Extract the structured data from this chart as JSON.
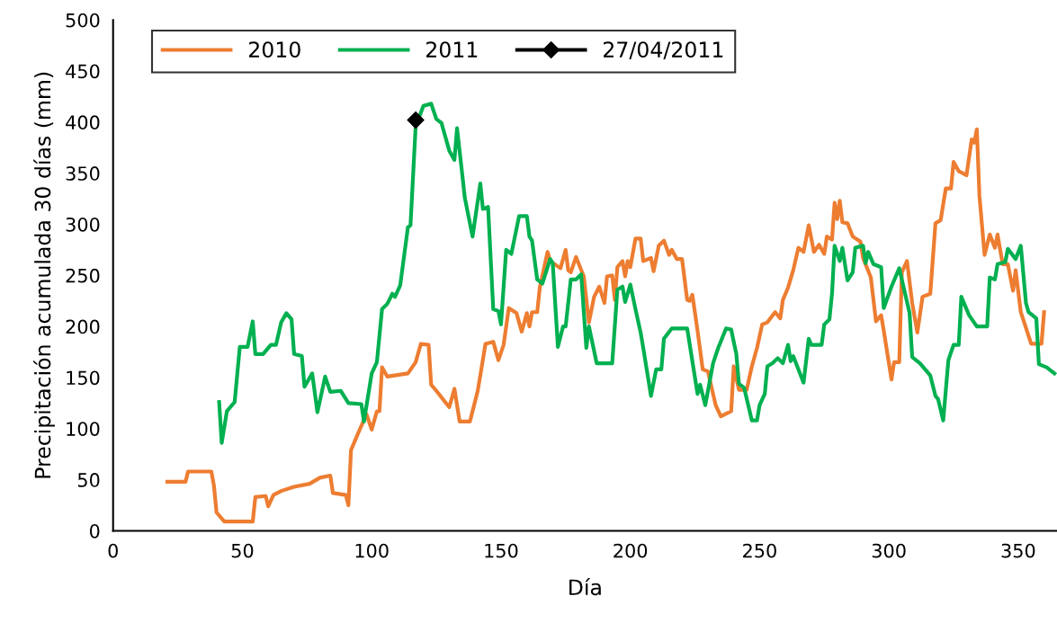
{
  "chart_data": {
    "type": "line",
    "xlabel": "Día",
    "ylabel": "Precipitación acumulada 30 días (mm)",
    "xlim": [
      0,
      365
    ],
    "xticks": [
      0,
      50,
      100,
      150,
      200,
      250,
      300,
      350
    ],
    "ylim": [
      0,
      500
    ],
    "yticks": [
      0,
      50,
      100,
      150,
      200,
      250,
      300,
      350,
      400,
      450,
      500
    ],
    "grid": false,
    "legend": "top left",
    "series": [
      {
        "name": "2010",
        "color": "#ed7d31",
        "marker": "none",
        "x": [
          21,
          28,
          29,
          38,
          39,
          40,
          43,
          54,
          55,
          59,
          60,
          62,
          65,
          70,
          76,
          80,
          84,
          85,
          90,
          91,
          92,
          95,
          98,
          100,
          102,
          103,
          104,
          106,
          114,
          117,
          119,
          122,
          123,
          125,
          130,
          132,
          134,
          138,
          141,
          142,
          144,
          147,
          149,
          151,
          153,
          156,
          158,
          160,
          161,
          162,
          164,
          165,
          168,
          169,
          173,
          175,
          176,
          177,
          179,
          182,
          184,
          186,
          188,
          190,
          191,
          193,
          194,
          195,
          197,
          198,
          199,
          200,
          202,
          204,
          205,
          208,
          209,
          211,
          213,
          215,
          216,
          218,
          220,
          222,
          223,
          224,
          226,
          228,
          230,
          233,
          235,
          239,
          240,
          242,
          245,
          247,
          249,
          251,
          253,
          256,
          258,
          259,
          261,
          263,
          265,
          267,
          269,
          271,
          273,
          275,
          276,
          278,
          279,
          280,
          281,
          282,
          284,
          286,
          289,
          290,
          293,
          295,
          297,
          298,
          301,
          302,
          304,
          305,
          307,
          309,
          311,
          313,
          316,
          318,
          320,
          322,
          324,
          325,
          327,
          330,
          332,
          333,
          334,
          335,
          337,
          339,
          341,
          342,
          344,
          346,
          348,
          349,
          351,
          355,
          359,
          360
        ],
        "values": [
          48,
          48,
          58,
          58,
          44,
          18,
          9,
          9,
          33,
          34,
          24,
          35,
          39,
          43,
          46,
          52,
          54,
          37,
          35,
          25,
          79,
          97,
          114,
          99,
          117,
          117,
          160,
          151,
          154,
          165,
          183,
          182,
          143,
          137,
          121,
          139,
          107,
          107,
          137,
          152,
          183,
          185,
          167,
          182,
          218,
          213,
          195,
          213,
          200,
          214,
          214,
          238,
          273,
          264,
          257,
          275,
          255,
          253,
          268,
          249,
          204,
          229,
          239,
          223,
          249,
          250,
          226,
          258,
          264,
          249,
          264,
          258,
          286,
          286,
          264,
          267,
          254,
          279,
          284,
          270,
          275,
          266,
          266,
          226,
          225,
          231,
          196,
          158,
          156,
          123,
          112,
          117,
          161,
          138,
          138,
          161,
          179,
          202,
          204,
          214,
          208,
          226,
          238,
          255,
          277,
          273,
          299,
          273,
          280,
          271,
          288,
          285,
          321,
          305,
          323,
          302,
          301,
          288,
          283,
          267,
          248,
          205,
          211,
          196,
          148,
          165,
          165,
          253,
          264,
          223,
          194,
          229,
          232,
          301,
          304,
          335,
          335,
          361,
          352,
          348,
          383,
          380,
          393,
          328,
          270,
          290,
          277,
          290,
          261,
          261,
          235,
          255,
          214,
          183,
          183,
          214
        ]
      },
      {
        "name": "2011",
        "color": "#00b050",
        "marker": "none",
        "x": [
          41,
          42,
          44,
          47,
          49,
          52,
          54,
          55,
          58,
          61,
          63,
          65,
          67,
          69,
          70,
          73,
          74,
          77,
          79,
          82,
          84,
          88,
          91,
          96,
          97,
          100,
          102,
          104,
          106,
          108,
          109,
          111,
          114,
          115,
          117,
          120,
          123,
          125,
          127,
          130,
          132,
          133,
          135,
          136,
          139,
          142,
          143,
          145,
          147,
          149,
          150,
          152,
          154,
          157,
          160,
          161,
          162,
          164,
          166,
          169,
          170,
          172,
          174,
          175,
          177,
          179,
          181,
          183,
          184,
          187,
          193,
          195,
          197,
          198,
          200,
          202,
          204,
          205,
          208,
          210,
          212,
          213,
          216,
          222,
          226,
          227,
          229,
          232,
          234,
          237,
          239,
          241,
          242,
          244,
          247,
          249,
          250,
          252,
          253,
          255,
          257,
          259,
          261,
          262,
          263,
          267,
          269,
          270,
          274,
          275,
          277,
          278,
          279,
          281,
          282,
          284,
          286,
          287,
          290,
          291,
          292,
          294,
          297,
          298,
          301,
          304,
          306,
          308,
          309,
          312,
          316,
          318,
          319,
          321,
          323,
          325,
          327,
          328,
          331,
          334,
          338,
          339,
          341,
          342,
          345,
          346,
          349,
          351,
          353,
          354,
          357,
          358,
          361,
          364
        ],
        "values": [
          126,
          86,
          117,
          126,
          180,
          180,
          205,
          173,
          173,
          182,
          182,
          204,
          213,
          207,
          173,
          171,
          141,
          154,
          116,
          151,
          136,
          137,
          125,
          124,
          107,
          154,
          165,
          217,
          222,
          232,
          229,
          240,
          297,
          299,
          396,
          416,
          418,
          403,
          399,
          372,
          363,
          394,
          349,
          326,
          288,
          340,
          315,
          317,
          217,
          215,
          202,
          275,
          271,
          308,
          308,
          288,
          284,
          246,
          242,
          266,
          262,
          180,
          200,
          200,
          246,
          246,
          251,
          179,
          200,
          164,
          164,
          236,
          239,
          224,
          241,
          217,
          194,
          179,
          132,
          158,
          158,
          188,
          198,
          198,
          134,
          143,
          123,
          164,
          179,
          198,
          197,
          173,
          144,
          140,
          108,
          108,
          123,
          134,
          161,
          164,
          169,
          164,
          182,
          166,
          171,
          145,
          188,
          182,
          182,
          202,
          207,
          232,
          279,
          264,
          277,
          245,
          253,
          277,
          279,
          262,
          273,
          261,
          258,
          218,
          239,
          257,
          235,
          213,
          170,
          164,
          152,
          132,
          129,
          108,
          167,
          182,
          182,
          229,
          211,
          200,
          200,
          248,
          246,
          261,
          263,
          276,
          266,
          279,
          223,
          214,
          208,
          163,
          160,
          154
        ]
      },
      {
        "name": "27/04/2011",
        "color": "#000000",
        "marker": "diamond",
        "x": [
          117
        ],
        "values": [
          402
        ]
      }
    ]
  }
}
